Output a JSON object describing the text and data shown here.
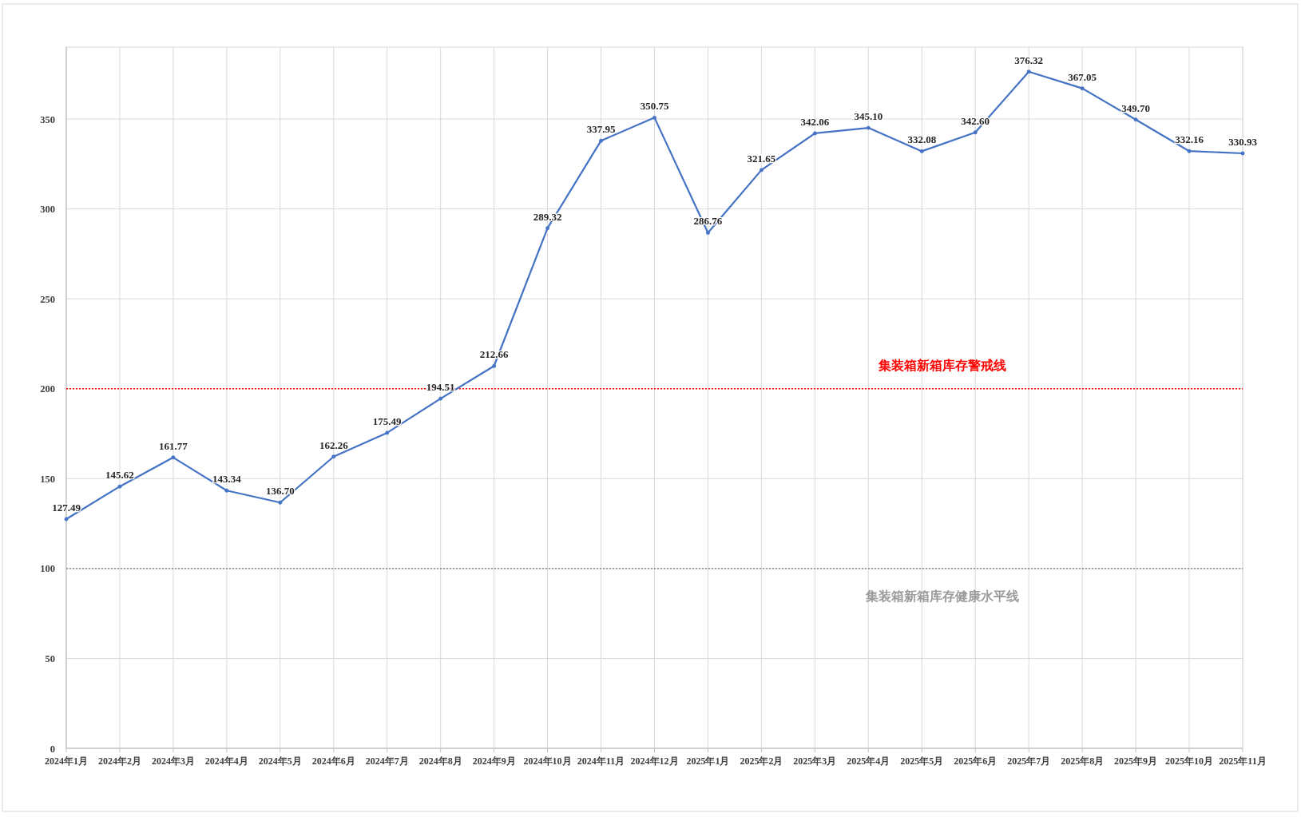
{
  "chart_data": {
    "type": "line",
    "categories": [
      "2024年1月",
      "2024年2月",
      "2024年3月",
      "2024年4月",
      "2024年5月",
      "2024年6月",
      "2024年7月",
      "2024年8月",
      "2024年9月",
      "2024年10月",
      "2024年11月",
      "2024年12月",
      "2025年1月",
      "2025年2月",
      "2025年3月",
      "2025年4月",
      "2025年5月",
      "2025年6月",
      "2025年7月",
      "2025年8月",
      "2025年9月",
      "2025年10月",
      "2025年11月"
    ],
    "values": [
      127.49,
      145.62,
      161.77,
      143.34,
      136.7,
      162.26,
      175.49,
      194.51,
      212.66,
      289.32,
      337.95,
      350.75,
      286.76,
      321.65,
      342.06,
      345.1,
      332.08,
      342.6,
      376.32,
      367.05,
      349.7,
      332.16,
      330.93
    ],
    "value_labels": [
      "127.49",
      "145.62",
      "161.77",
      "143.34",
      "136.70",
      "162.26",
      "175.49",
      "194.51",
      "212.66",
      "289.32",
      "337.95",
      "350.75",
      "286.76",
      "321.65",
      "342.06",
      "345.10",
      "332.08",
      "342.60",
      "376.32",
      "367.05",
      "349.70",
      "332.16",
      "330.93"
    ],
    "color": "#4472c4",
    "ylim": [
      0,
      390
    ],
    "yticks": [
      0,
      50,
      100,
      150,
      200,
      250,
      300,
      350
    ],
    "grid": true,
    "marker": "circle",
    "line_style": "solid",
    "ref_lines": [
      {
        "axis": "y",
        "value": 200,
        "label": "集装箱新箱库存警戒线",
        "color": "#ff0000",
        "line_style": "dotted"
      },
      {
        "axis": "y",
        "value": 100,
        "label": "集装箱新箱库存健康水平线",
        "color": "#9a9a9a",
        "line_style": "dotted"
      }
    ]
  }
}
